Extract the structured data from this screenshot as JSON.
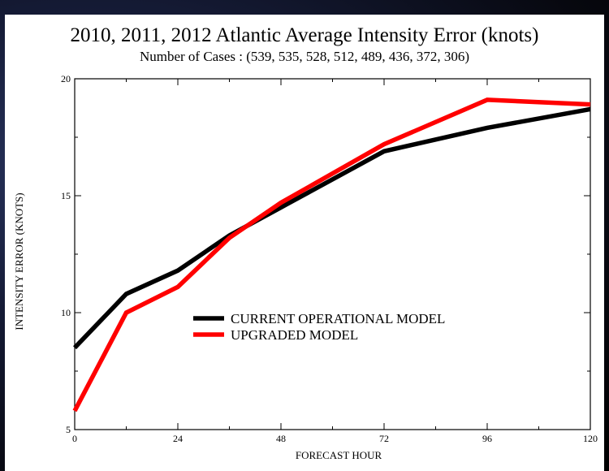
{
  "chart_data": {
    "type": "line",
    "title": "2010, 2011, 2012  Atlantic Average Intensity Error (knots)",
    "subtitle": "Number of Cases : (539, 535, 528, 512, 489, 436, 372, 306)",
    "xlabel": "FORECAST HOUR",
    "ylabel": "INTENSITY ERROR  (KNOTS)",
    "xlim": [
      0,
      120
    ],
    "ylim": [
      5,
      20
    ],
    "x_ticks": [
      0,
      24,
      48,
      72,
      96,
      120
    ],
    "y_ticks": [
      5,
      10,
      15,
      20
    ],
    "grid": false,
    "legend_position": "center",
    "series": [
      {
        "name": "CURRENT OPERATIONAL  MODEL",
        "color": "#000000",
        "x": [
          0,
          12,
          24,
          36,
          48,
          72,
          96,
          120
        ],
        "values": [
          8.5,
          10.8,
          11.8,
          13.3,
          14.5,
          16.9,
          17.9,
          18.7
        ]
      },
      {
        "name": "UPGRADED MODEL",
        "color": "#ff0000",
        "x": [
          0,
          12,
          24,
          36,
          48,
          72,
          96,
          120
        ],
        "values": [
          5.8,
          10.0,
          11.1,
          13.2,
          14.7,
          17.2,
          19.1,
          18.9
        ]
      }
    ]
  }
}
